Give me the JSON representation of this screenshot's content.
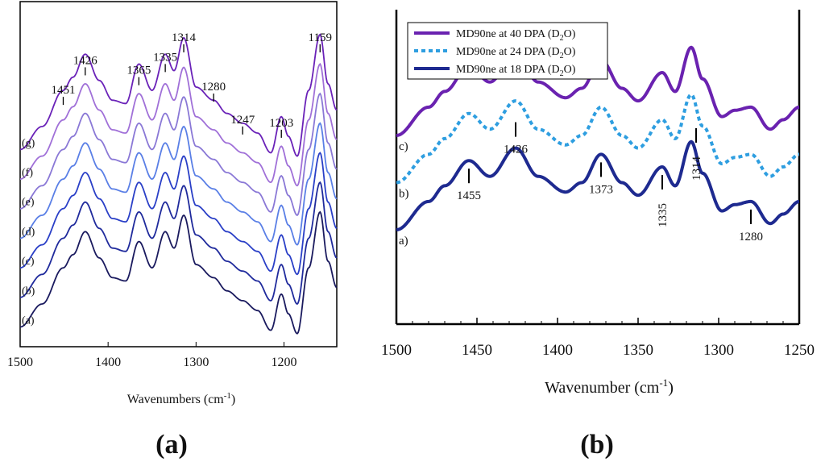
{
  "panel_labels": [
    "(a)",
    "(b)"
  ],
  "chart_data": [
    {
      "type": "line",
      "panel": "(a)",
      "xlabel": "Wavenumbers (cm",
      "xlabel_sup": "-1",
      "xlabel_end": ")",
      "ylabel": "",
      "xlim": [
        1500,
        1140
      ],
      "ylim": [
        0,
        10.5
      ],
      "x_ticks": [
        1500,
        1400,
        1300,
        1200
      ],
      "peak_labels": [
        {
          "label": "1451",
          "x": 1451,
          "y": 7.7
        },
        {
          "label": "1426",
          "x": 1426,
          "y": 8.6
        },
        {
          "label": "1365",
          "x": 1365,
          "y": 8.3
        },
        {
          "label": "1335",
          "x": 1335,
          "y": 8.7
        },
        {
          "label": "1314",
          "x": 1314,
          "y": 9.3
        },
        {
          "label": "1280",
          "x": 1280,
          "y": 7.8
        },
        {
          "label": "1247",
          "x": 1247,
          "y": 6.8
        },
        {
          "label": "1203",
          "x": 1203,
          "y": 6.7
        },
        {
          "label": "1159",
          "x": 1159,
          "y": 9.3
        }
      ],
      "peak_model": {
        "x": [
          1500,
          1475,
          1451,
          1440,
          1426,
          1410,
          1395,
          1380,
          1365,
          1350,
          1335,
          1325,
          1314,
          1300,
          1280,
          1265,
          1247,
          1230,
          1215,
          1203,
          1195,
          1185,
          1172,
          1159,
          1150,
          1140
        ],
        "y": [
          0.0,
          0.7,
          1.8,
          2.2,
          2.9,
          2.1,
          1.5,
          1.4,
          2.6,
          1.8,
          2.9,
          2.4,
          3.4,
          1.9,
          1.5,
          1.1,
          0.8,
          0.5,
          -0.1,
          1.0,
          0.4,
          -0.2,
          1.8,
          3.5,
          2.0,
          1.2
        ]
      },
      "series": [
        {
          "name": "(a)",
          "offset": 0.0,
          "color": "#1a1a5e"
        },
        {
          "name": "(b)",
          "offset": 0.9,
          "color": "#1f2a9c"
        },
        {
          "name": "(c)",
          "offset": 1.8,
          "color": "#2a3fc7"
        },
        {
          "name": "(d)",
          "offset": 2.7,
          "color": "#5a7fe6"
        },
        {
          "name": "(e)",
          "offset": 3.6,
          "color": "#8a78d6"
        },
        {
          "name": "(f)",
          "offset": 4.5,
          "color": "#a070d8"
        },
        {
          "name": "(g)",
          "offset": 5.4,
          "color": "#6a22b8"
        }
      ]
    },
    {
      "type": "line",
      "panel": "(b)",
      "xlabel": "Wavenumber (cm",
      "xlabel_sup": "-1",
      "xlabel_end": ")",
      "ylabel": "",
      "xlim": [
        1500,
        1250
      ],
      "ylim": [
        0,
        10
      ],
      "x_ticks": [
        1500,
        1450,
        1400,
        1350,
        1300,
        1250
      ],
      "legend": [
        {
          "label": "MD90ne at 40 DPA (D",
          "sub": "2",
          "end": "O)",
          "color": "#6a22b0",
          "dash": "solid"
        },
        {
          "label": "MD90ne at 24 DPA (D",
          "sub": "2",
          "end": "O)",
          "color": "#2e9ee0",
          "dash": "dotted"
        },
        {
          "label": "MD90ne at 18 DPA (D",
          "sub": "2",
          "end": "O)",
          "color": "#1e2a90",
          "dash": "solid"
        }
      ],
      "peak_labels": [
        {
          "label": "1455",
          "x": 1455
        },
        {
          "label": "1426",
          "x": 1426
        },
        {
          "label": "1373",
          "x": 1373
        },
        {
          "label": "1335",
          "x": 1335
        },
        {
          "label": "1314",
          "x": 1314
        },
        {
          "label": "1280",
          "x": 1280
        }
      ],
      "peak_model": {
        "x": [
          1500,
          1480,
          1470,
          1455,
          1442,
          1426,
          1412,
          1395,
          1385,
          1373,
          1360,
          1350,
          1335,
          1327,
          1317,
          1310,
          1298,
          1290,
          1280,
          1268,
          1260,
          1250
        ],
        "y": [
          0.0,
          0.9,
          1.4,
          2.2,
          1.7,
          2.6,
          1.7,
          1.2,
          1.5,
          2.4,
          1.5,
          1.1,
          2.0,
          1.4,
          2.8,
          1.8,
          0.6,
          0.8,
          0.9,
          0.2,
          0.5,
          0.9
        ]
      },
      "series": [
        {
          "name": "a)",
          "offset": 3.0,
          "color": "#1e2a90",
          "dash": "solid"
        },
        {
          "name": "b)",
          "offset": 4.5,
          "color": "#2e9ee0",
          "dash": "dotted"
        },
        {
          "name": "c)",
          "offset": 6.0,
          "color": "#6a22b0",
          "dash": "solid"
        }
      ]
    }
  ]
}
